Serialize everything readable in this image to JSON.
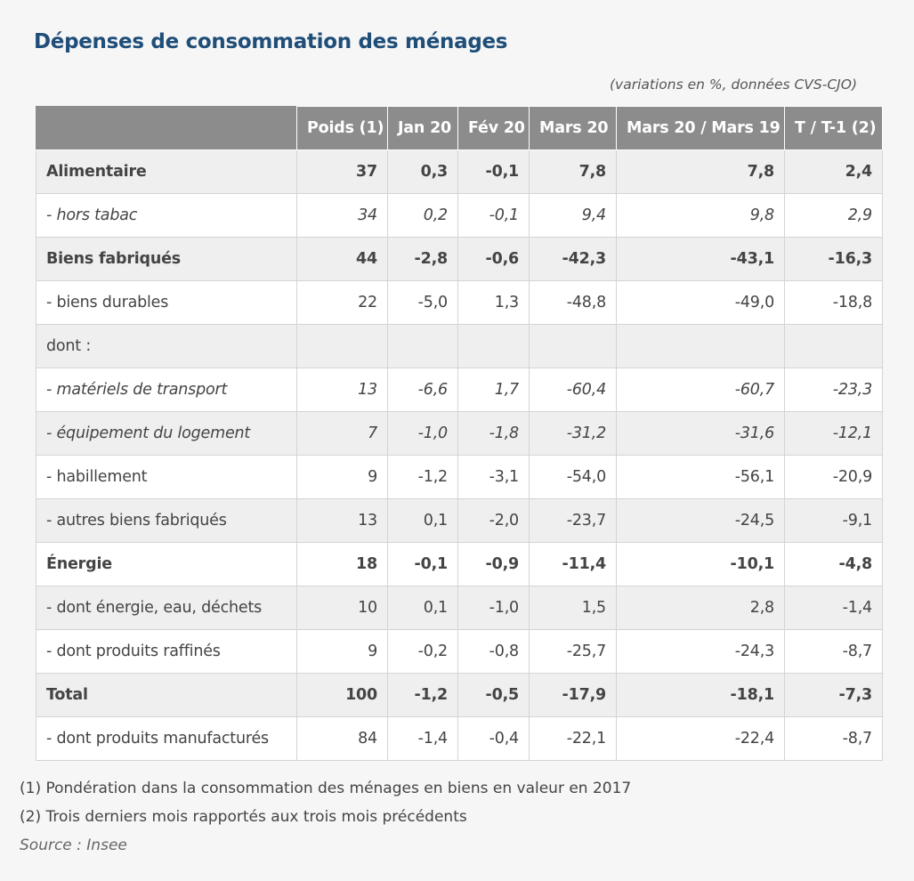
{
  "title": "Dépenses de consommation des ménages",
  "subtitle": "(variations en %, données CVS-CJO)",
  "table": {
    "columns": [
      "",
      "Poids (1)",
      "Jan 20",
      "Fév 20",
      "Mars 20",
      "Mars 20 / Mars 19",
      "T / T-1 (2)"
    ],
    "rows": [
      {
        "label": "Alimentaire",
        "style": "bold",
        "shade": "grey",
        "cells": [
          "37",
          "0,3",
          "-0,1",
          "7,8",
          "7,8",
          "2,4"
        ]
      },
      {
        "label": "- hors tabac",
        "style": "italic",
        "shade": "white",
        "cells": [
          "34",
          "0,2",
          "-0,1",
          "9,4",
          "9,8",
          "2,9"
        ]
      },
      {
        "label": "Biens fabriqués",
        "style": "bold",
        "shade": "grey",
        "cells": [
          "44",
          "-2,8",
          "-0,6",
          "-42,3",
          "-43,1",
          "-16,3"
        ]
      },
      {
        "label": "- biens durables",
        "style": "normal",
        "shade": "white",
        "cells": [
          "22",
          "-5,0",
          "1,3",
          "-48,8",
          "-49,0",
          "-18,8"
        ]
      },
      {
        "label": "dont :",
        "style": "normal",
        "shade": "grey",
        "cells": [
          "",
          "",
          "",
          "",
          "",
          ""
        ]
      },
      {
        "label": "- matériels de transport",
        "style": "italic",
        "shade": "white",
        "cells": [
          "13",
          "-6,6",
          "1,7",
          "-60,4",
          "-60,7",
          "-23,3"
        ]
      },
      {
        "label": "- équipement du logement",
        "style": "italic",
        "shade": "grey",
        "cells": [
          "7",
          "-1,0",
          "-1,8",
          "-31,2",
          "-31,6",
          "-12,1"
        ]
      },
      {
        "label": "- habillement",
        "style": "normal",
        "shade": "white",
        "cells": [
          "9",
          "-1,2",
          "-3,1",
          "-54,0",
          "-56,1",
          "-20,9"
        ]
      },
      {
        "label": "- autres biens fabriqués",
        "style": "normal",
        "shade": "grey",
        "cells": [
          "13",
          "0,1",
          "-2,0",
          "-23,7",
          "-24,5",
          "-9,1"
        ]
      },
      {
        "label": "Énergie",
        "style": "bold",
        "shade": "white",
        "cells": [
          "18",
          "-0,1",
          "-0,9",
          "-11,4",
          "-10,1",
          "-4,8"
        ]
      },
      {
        "label": "- dont énergie, eau, déchets",
        "style": "normal",
        "shade": "grey",
        "cells": [
          "10",
          "0,1",
          "-1,0",
          "1,5",
          "2,8",
          "-1,4"
        ]
      },
      {
        "label": "- dont produits raffinés",
        "style": "normal",
        "shade": "white",
        "cells": [
          "9",
          "-0,2",
          "-0,8",
          "-25,7",
          "-24,3",
          "-8,7"
        ]
      },
      {
        "label": "Total",
        "style": "bold",
        "shade": "grey",
        "cells": [
          "100",
          "-1,2",
          "-0,5",
          "-17,9",
          "-18,1",
          "-7,3"
        ]
      },
      {
        "label": "- dont produits manufacturés",
        "style": "normal",
        "shade": "white",
        "cells": [
          "84",
          "-1,4",
          "-0,4",
          "-22,1",
          "-22,4",
          "-8,7"
        ]
      }
    ]
  },
  "footnotes": {
    "note1": "(1) Pondération dans la consommation des ménages en biens en valeur en 2017",
    "note2": "(2) Trois derniers mois rapportés aux trois mois précédents",
    "source": "Source : Insee"
  }
}
